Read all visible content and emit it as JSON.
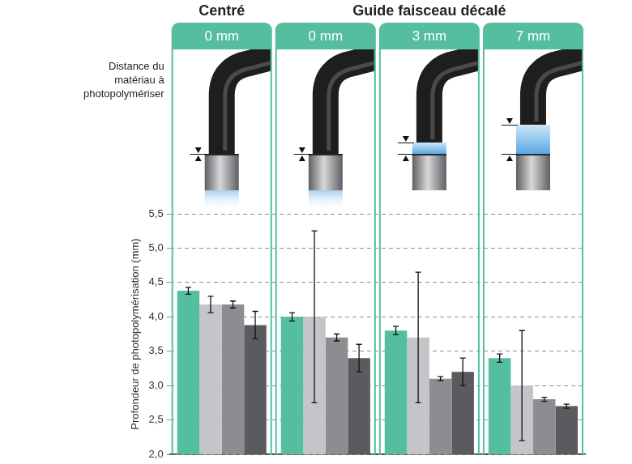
{
  "chart_data": {
    "type": "bar",
    "groups": [
      {
        "title": "Centré",
        "size": 1
      },
      {
        "title": "Guide faisceau décalé",
        "size": 3
      }
    ],
    "row_label": "Distance du matériau à photopolymériser",
    "categories": [
      "0 mm",
      "0 mm",
      "3 mm",
      "7 mm"
    ],
    "ylabel": "Profondeur de photopolymérisation (mm)",
    "series": [
      {
        "color": "#55bea0",
        "values": [
          4.38,
          4.0,
          3.8,
          3.4
        ],
        "errors": [
          0.05,
          0.06,
          0.06,
          0.06
        ]
      },
      {
        "color": "#c4c5c8",
        "values": [
          4.18,
          4.0,
          3.7,
          3.0
        ],
        "errors": [
          0.12,
          1.25,
          0.95,
          0.8
        ]
      },
      {
        "color": "#8b8d90",
        "values": [
          4.18,
          3.7,
          3.1,
          2.8
        ],
        "errors": [
          0.05,
          0.05,
          0.03,
          0.03
        ]
      },
      {
        "color": "#5a5b5e",
        "values": [
          3.88,
          3.4,
          3.2,
          2.7
        ],
        "errors": [
          0.2,
          0.2,
          0.2,
          0.03
        ]
      }
    ],
    "ylim": [
      2.0,
      5.5
    ],
    "yticks": [
      {
        "value": 2.0,
        "label": "2,0"
      },
      {
        "value": 2.5,
        "label": "2,5"
      },
      {
        "value": 3.0,
        "label": "3,0"
      },
      {
        "value": 3.5,
        "label": "3,5"
      },
      {
        "value": 4.0,
        "label": "4,0"
      },
      {
        "value": 4.5,
        "label": "4,5"
      },
      {
        "value": 5.0,
        "label": "5,0"
      },
      {
        "value": 5.5,
        "label": "5,5"
      }
    ],
    "grid": true
  }
}
